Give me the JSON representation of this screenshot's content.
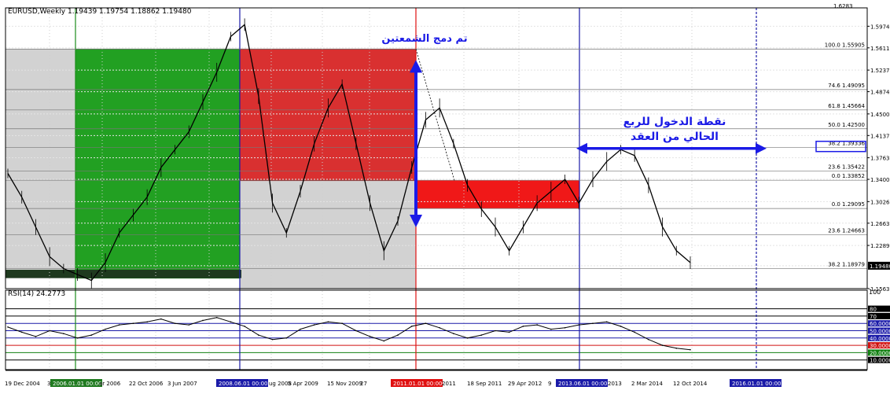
{
  "chart_data": [
    {
      "type": "candlestick",
      "title": "EURUSD,Weekly  1.19439 1.19754 1.18862 1.19480",
      "price_scale": {
        "min": 1.1563,
        "max": 1.6283,
        "ticks": [
          "1.59740",
          "1.56110",
          "1.52370",
          "1.48740",
          "1.45000",
          "1.41370",
          "1.37630",
          "1.34000",
          "1.30260",
          "1.26630",
          "1.22890",
          "1.19480",
          "1.15630"
        ],
        "top_label": "1.6283",
        "current_price": "1.19480"
      },
      "date_labels": [
        "19 Dec 2004",
        "3",
        "2006.01.01 00:00",
        "ar 2006",
        "22 Oct 2006",
        "3 Jun 2007",
        "2008.06.01 00:00",
        "ug 2008",
        "5 Apr 2009",
        "15 Nov 2009",
        "27",
        "2011.01.01 00:00",
        "2011",
        "18 Sep 2011",
        "29 Apr 2012",
        "9",
        "2013.06.01 00:00",
        "2013",
        "2 Mar 2014",
        "12 Oct 2014",
        "2016.01.01 00:00"
      ],
      "price_series": [
        1.35,
        1.31,
        1.26,
        1.21,
        1.19,
        1.18,
        1.17,
        1.2,
        1.25,
        1.28,
        1.31,
        1.36,
        1.39,
        1.42,
        1.47,
        1.52,
        1.58,
        1.6,
        1.48,
        1.3,
        1.25,
        1.32,
        1.4,
        1.46,
        1.5,
        1.4,
        1.3,
        1.22,
        1.27,
        1.36,
        1.44,
        1.46,
        1.4,
        1.33,
        1.29,
        1.26,
        1.22,
        1.26,
        1.3,
        1.32,
        1.34,
        1.3,
        1.34,
        1.37,
        1.39,
        1.38,
        1.33,
        1.26,
        1.22,
        1.2
      ],
      "fib_levels": [
        {
          "label": "100.0 1.55905",
          "price": 1.55905
        },
        {
          "label": "74.6 1.49095",
          "price": 1.49095
        },
        {
          "label": "61.8 1.45664",
          "price": 1.45664
        },
        {
          "label": "50.0 1.42500",
          "price": 1.425
        },
        {
          "label": "38.2 1.39336",
          "price": 1.39336
        },
        {
          "label": "23.6 1.35422",
          "price": 1.35422
        },
        {
          "label": "0.0 1.33852",
          "price": 1.33852
        },
        {
          "label": "0.0 1.29095",
          "price": 1.29095
        },
        {
          "label": "23.6 1.24663",
          "price": 1.24663
        },
        {
          "label": "38.2 1.18979",
          "price": 1.18979
        }
      ],
      "annotations": {
        "merge_candles": "تم دمج الشمعتين",
        "entry_line1": "نقطة الدخول للربع",
        "entry_line2": "الحالي من العقد"
      },
      "colors": {
        "green_box": "#22a022",
        "red_box": "#d93030",
        "gray_box": "#d2d2d2",
        "arrow": "#1a1ae6",
        "vline_blue": "#1a1aa8",
        "vline_red": "#e01010",
        "vline_green": "#1a8c1a"
      }
    },
    {
      "type": "line",
      "title": "RSI(14) 24.2773",
      "scale_top": "100",
      "levels": [
        "80",
        "70",
        "60.0000",
        "50.0000",
        "40.0000",
        "30.0000",
        "20.0000",
        "10.0000"
      ],
      "level_colors": [
        "#000000",
        "#000000",
        "#1a1aa8",
        "#1a1aa8",
        "#1a1aa8",
        "#d01010",
        "#108010",
        "#000000"
      ],
      "series": [
        55,
        48,
        42,
        50,
        46,
        40,
        44,
        52,
        58,
        60,
        62,
        66,
        60,
        58,
        64,
        68,
        62,
        56,
        44,
        38,
        40,
        52,
        58,
        62,
        60,
        50,
        42,
        36,
        44,
        56,
        60,
        54,
        46,
        40,
        44,
        50,
        48,
        56,
        58,
        52,
        54,
        58,
        60,
        62,
        56,
        48,
        38,
        30,
        26,
        24
      ]
    }
  ]
}
